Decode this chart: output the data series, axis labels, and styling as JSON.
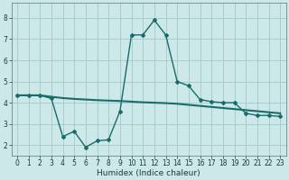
{
  "xlabel": "Humidex (Indice chaleur)",
  "background_color": "#cce8e8",
  "grid_color": "#aacccc",
  "line_color": "#1a6b6b",
  "xlim": [
    -0.5,
    23.5
  ],
  "ylim": [
    1.5,
    8.7
  ],
  "yticks": [
    2,
    3,
    4,
    5,
    6,
    7,
    8
  ],
  "xticks": [
    0,
    1,
    2,
    3,
    4,
    5,
    6,
    7,
    8,
    9,
    10,
    11,
    12,
    13,
    14,
    15,
    16,
    17,
    18,
    19,
    20,
    21,
    22,
    23
  ],
  "line2_x": [
    0,
    1,
    2,
    3,
    4,
    5,
    6,
    7,
    8,
    9,
    10,
    11,
    12,
    13,
    14,
    15,
    16,
    17,
    18,
    19,
    20,
    21,
    22,
    23
  ],
  "line2_y": [
    4.35,
    4.35,
    4.35,
    4.28,
    4.22,
    4.18,
    4.15,
    4.12,
    4.1,
    4.08,
    4.05,
    4.02,
    4.0,
    3.98,
    3.95,
    3.9,
    3.85,
    3.8,
    3.75,
    3.7,
    3.65,
    3.6,
    3.55,
    3.5
  ],
  "line3_x": [
    0,
    1,
    2,
    3,
    4,
    5,
    6,
    7,
    8,
    9,
    10,
    11,
    12,
    13,
    14,
    15,
    16,
    17,
    18,
    19,
    20,
    21,
    22,
    23
  ],
  "line3_y": [
    4.35,
    4.35,
    4.35,
    4.2,
    2.4,
    2.65,
    1.9,
    2.2,
    2.25,
    3.6,
    7.2,
    7.2,
    7.9,
    7.2,
    5.0,
    4.8,
    4.15,
    4.05,
    4.0,
    4.0,
    3.5,
    3.4,
    3.4,
    3.35
  ]
}
